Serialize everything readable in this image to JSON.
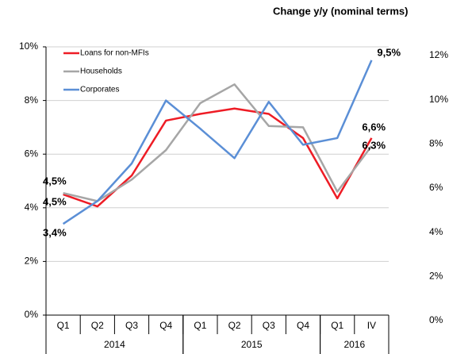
{
  "chart_data": {
    "type": "line",
    "title": "Change y/y (nominal terms)",
    "categories": [
      "Q1",
      "Q2",
      "Q3",
      "Q4",
      "Q1",
      "Q2",
      "Q3",
      "Q4",
      "Q1",
      "IV"
    ],
    "x_groups": [
      "2014",
      "2015",
      "2016"
    ],
    "x_group_sizes": [
      4,
      4,
      2
    ],
    "series": [
      {
        "name": "Loans for non-MFIs",
        "color": "#ee1c25",
        "label_color": "#ee1c25",
        "values": [
          4.5,
          4.05,
          5.2,
          7.25,
          7.5,
          7.7,
          7.5,
          6.6,
          4.35,
          6.6
        ],
        "value_labels": [
          "4,5%",
          null,
          null,
          null,
          null,
          null,
          null,
          null,
          null,
          "6,6%"
        ]
      },
      {
        "name": "Households",
        "color": "#a6a6a6",
        "label_color": "#000000",
        "values": [
          4.55,
          4.25,
          5.05,
          6.15,
          7.9,
          8.6,
          7.05,
          7.0,
          4.6,
          6.3
        ],
        "value_labels": [
          "4,5%",
          null,
          null,
          null,
          null,
          null,
          null,
          null,
          null,
          "6,3%"
        ]
      },
      {
        "name": "Corporates",
        "color": "#5b8fd6",
        "label_color": "#3c3c9c",
        "values": [
          3.4,
          4.25,
          5.65,
          8.0,
          6.95,
          5.85,
          7.95,
          6.35,
          6.6,
          9.5
        ],
        "value_labels": [
          "3,4%",
          null,
          null,
          null,
          null,
          null,
          null,
          null,
          null,
          "9,5%"
        ]
      }
    ],
    "ylim": [
      0,
      10
    ],
    "yticks": [
      {
        "value": 0,
        "label": "0%"
      },
      {
        "value": 2,
        "label": "2%"
      },
      {
        "value": 4,
        "label": "4%"
      },
      {
        "value": 6,
        "label": "6%"
      },
      {
        "value": 8,
        "label": "8%"
      },
      {
        "value": 10,
        "label": "10%"
      }
    ],
    "y2lim": [
      0,
      12
    ],
    "y2ticks": [
      {
        "value": 0,
        "label": "0%"
      },
      {
        "value": 2,
        "label": "2%"
      },
      {
        "value": 4,
        "label": "4%"
      },
      {
        "value": 6,
        "label": "6%"
      },
      {
        "value": 8,
        "label": "8%"
      },
      {
        "value": 10,
        "label": "10%"
      },
      {
        "value": 12,
        "label": "12%"
      }
    ],
    "grid": true,
    "legend": "top-left"
  }
}
